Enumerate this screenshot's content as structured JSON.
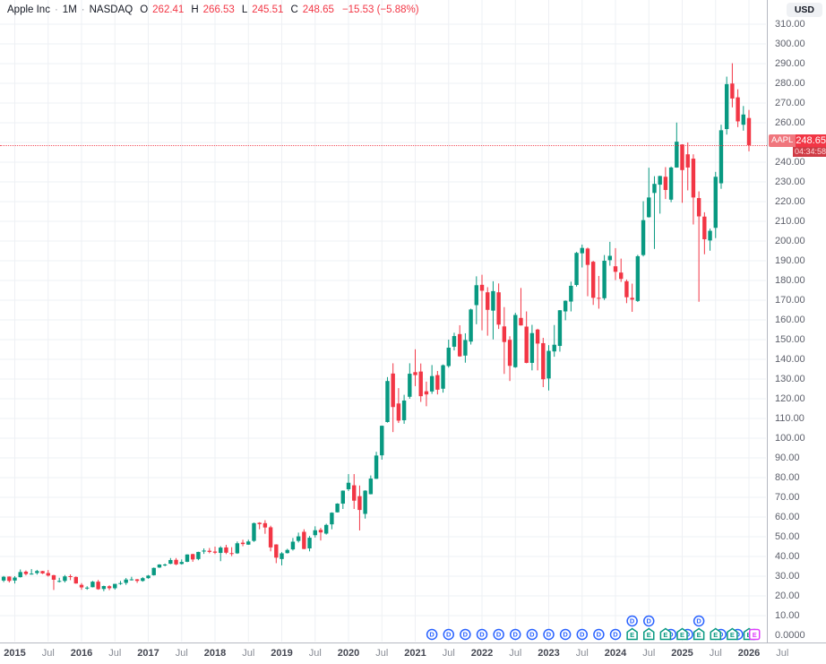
{
  "header": {
    "title": "Apple Inc",
    "dot": "·",
    "interval": "1M",
    "exchange": "NASDAQ",
    "o_label": "O",
    "o": "262.41",
    "h_label": "H",
    "h": "266.53",
    "l_label": "L",
    "l": "245.51",
    "c_label": "C",
    "c": "248.65",
    "change": "−15.53 (−5.88%)"
  },
  "price_axis": {
    "currency": "USD",
    "ticks": [
      "310.00",
      "300.00",
      "290.00",
      "280.00",
      "270.00",
      "260.00",
      "250.00",
      "240.00",
      "230.00",
      "220.00",
      "210.00",
      "200.00",
      "190.00",
      "180.00",
      "170.00",
      "160.00",
      "150.00",
      "140.00",
      "130.00",
      "120.00",
      "110.00",
      "100.00",
      "90.00",
      "80.00",
      "70.00",
      "60.00",
      "50.00",
      "40.00",
      "30.00",
      "20.00",
      "10.00",
      "0.0000"
    ],
    "last_price_label": {
      "symbol": "AAPL",
      "price": "248.65",
      "countdown": "04:34:58"
    }
  },
  "time_axis": {
    "ticks": [
      {
        "label": "2015",
        "month": "2015-01",
        "major": true
      },
      {
        "label": "Jul",
        "month": "2015-07",
        "major": false
      },
      {
        "label": "2016",
        "month": "2016-01",
        "major": true
      },
      {
        "label": "Jul",
        "month": "2016-07",
        "major": false
      },
      {
        "label": "2017",
        "month": "2017-01",
        "major": true
      },
      {
        "label": "Jul",
        "month": "2017-07",
        "major": false
      },
      {
        "label": "2018",
        "month": "2018-01",
        "major": true
      },
      {
        "label": "Jul",
        "month": "2018-07",
        "major": false
      },
      {
        "label": "2019",
        "month": "2019-01",
        "major": true
      },
      {
        "label": "Jul",
        "month": "2019-07",
        "major": false
      },
      {
        "label": "2020",
        "month": "2020-01",
        "major": true
      },
      {
        "label": "Jul",
        "month": "2020-07",
        "major": false
      },
      {
        "label": "2021",
        "month": "2021-01",
        "major": true
      },
      {
        "label": "Jul",
        "month": "2021-07",
        "major": false
      },
      {
        "label": "2022",
        "month": "2022-01",
        "major": true
      },
      {
        "label": "Jul",
        "month": "2022-07",
        "major": false
      },
      {
        "label": "2023",
        "month": "2023-01",
        "major": true
      },
      {
        "label": "Jul",
        "month": "2023-07",
        "major": false
      },
      {
        "label": "2024",
        "month": "2024-01",
        "major": true
      },
      {
        "label": "Jul",
        "month": "2024-07",
        "major": false
      },
      {
        "label": "2025",
        "month": "2025-01",
        "major": true
      },
      {
        "label": "Jul",
        "month": "2025-07",
        "major": false
      },
      {
        "label": "2026",
        "month": "2026-01",
        "major": true
      },
      {
        "label": "Jul",
        "month": "2026-07",
        "major": false
      }
    ]
  },
  "colors": {
    "up": "#089981",
    "down": "#f23645",
    "dividend": "#2962ff",
    "earnings": "#089981",
    "earnings_upcoming": "#e040fb",
    "grid": "#eef0f4",
    "last_price": "#f23645"
  },
  "markers": {
    "dividend_label": "D",
    "earnings_label": "E",
    "events": [
      {
        "month": "2021-04",
        "type": "dividend"
      },
      {
        "month": "2021-07",
        "type": "dividend"
      },
      {
        "month": "2021-10",
        "type": "dividend"
      },
      {
        "month": "2022-01",
        "type": "dividend"
      },
      {
        "month": "2022-04",
        "type": "dividend"
      },
      {
        "month": "2022-07",
        "type": "dividend"
      },
      {
        "month": "2022-10",
        "type": "dividend"
      },
      {
        "month": "2023-01",
        "type": "dividend"
      },
      {
        "month": "2023-04",
        "type": "dividend"
      },
      {
        "month": "2023-07",
        "type": "dividend"
      },
      {
        "month": "2023-10",
        "type": "dividend"
      },
      {
        "month": "2024-01",
        "type": "dividend"
      },
      {
        "month": "2024-04",
        "type": "earnings",
        "dividend_row2": true
      },
      {
        "month": "2024-07",
        "type": "earnings",
        "dividend_row2": true
      },
      {
        "month": "2024-10",
        "type": "earnings",
        "dividend_overlap": true
      },
      {
        "month": "2025-01",
        "type": "earnings",
        "dividend_overlap": true
      },
      {
        "month": "2025-04",
        "type": "earnings",
        "dividend_row2": true
      },
      {
        "month": "2025-07",
        "type": "earnings",
        "dividend_overlap": true
      },
      {
        "month": "2025-10",
        "type": "earnings",
        "dividend_overlap": true
      },
      {
        "month": "2026-01",
        "type": "earnings",
        "dividend_overlap": true
      },
      {
        "month": "2026-02",
        "type": "earnings_upcoming"
      }
    ]
  },
  "chart_data": {
    "type": "candlestick",
    "title": "Apple Inc (AAPL) · NASDAQ · 1M",
    "currency": "USD",
    "ylim": [
      0,
      310
    ],
    "grid": true,
    "last_close": 248.65,
    "months": [
      "2014-11",
      "2014-12",
      "2015-01",
      "2015-02",
      "2015-03",
      "2015-04",
      "2015-05",
      "2015-06",
      "2015-07",
      "2015-08",
      "2015-09",
      "2015-10",
      "2015-11",
      "2015-12",
      "2016-01",
      "2016-02",
      "2016-03",
      "2016-04",
      "2016-05",
      "2016-06",
      "2016-07",
      "2016-08",
      "2016-09",
      "2016-10",
      "2016-11",
      "2016-12",
      "2017-01",
      "2017-02",
      "2017-03",
      "2017-04",
      "2017-05",
      "2017-06",
      "2017-07",
      "2017-08",
      "2017-09",
      "2017-10",
      "2017-11",
      "2017-12",
      "2018-01",
      "2018-02",
      "2018-03",
      "2018-04",
      "2018-05",
      "2018-06",
      "2018-07",
      "2018-08",
      "2018-09",
      "2018-10",
      "2018-11",
      "2018-12",
      "2019-01",
      "2019-02",
      "2019-03",
      "2019-04",
      "2019-05",
      "2019-06",
      "2019-07",
      "2019-08",
      "2019-09",
      "2019-10",
      "2019-11",
      "2019-12",
      "2020-01",
      "2020-02",
      "2020-03",
      "2020-04",
      "2020-05",
      "2020-06",
      "2020-07",
      "2020-08",
      "2020-09",
      "2020-10",
      "2020-11",
      "2020-12",
      "2021-01",
      "2021-02",
      "2021-03",
      "2021-04",
      "2021-05",
      "2021-06",
      "2021-07",
      "2021-08",
      "2021-09",
      "2021-10",
      "2021-11",
      "2021-12",
      "2022-01",
      "2022-02",
      "2022-03",
      "2022-04",
      "2022-05",
      "2022-06",
      "2022-07",
      "2022-08",
      "2022-09",
      "2022-10",
      "2022-11",
      "2022-12",
      "2023-01",
      "2023-02",
      "2023-03",
      "2023-04",
      "2023-05",
      "2023-06",
      "2023-07",
      "2023-08",
      "2023-09",
      "2023-10",
      "2023-11",
      "2023-12",
      "2024-01",
      "2024-02",
      "2024-03",
      "2024-04",
      "2024-05",
      "2024-06",
      "2024-07",
      "2024-08",
      "2024-09",
      "2024-10",
      "2024-11",
      "2024-12",
      "2025-01",
      "2025-02",
      "2025-03",
      "2025-04",
      "2025-05",
      "2025-06",
      "2025-07",
      "2025-08",
      "2025-09",
      "2025-10",
      "2025-11",
      "2025-12",
      "2026-01"
    ],
    "ohlc": [
      [
        27.8,
        30.1,
        27.0,
        29.7
      ],
      [
        29.8,
        29.9,
        26.8,
        27.6
      ],
      [
        27.8,
        30.0,
        26.3,
        29.3
      ],
      [
        29.5,
        33.4,
        29.3,
        32.1
      ],
      [
        32.3,
        32.9,
        30.4,
        31.1
      ],
      [
        31.3,
        33.6,
        30.8,
        31.3
      ],
      [
        31.6,
        33.2,
        30.8,
        32.6
      ],
      [
        32.6,
        32.7,
        31.1,
        31.4
      ],
      [
        31.6,
        33.1,
        29.8,
        30.3
      ],
      [
        30.5,
        30.7,
        23.0,
        28.2
      ],
      [
        27.5,
        29.2,
        26.8,
        27.6
      ],
      [
        27.6,
        30.6,
        26.8,
        29.9
      ],
      [
        30.0,
        30.9,
        28.0,
        29.6
      ],
      [
        29.6,
        29.9,
        26.2,
        26.3
      ],
      [
        25.6,
        26.5,
        23.1,
        24.3
      ],
      [
        24.1,
        24.9,
        23.1,
        24.2
      ],
      [
        24.4,
        27.6,
        24.3,
        27.2
      ],
      [
        27.2,
        28.1,
        23.1,
        23.4
      ],
      [
        23.5,
        25.2,
        22.4,
        25.0
      ],
      [
        24.9,
        25.4,
        22.9,
        23.9
      ],
      [
        23.9,
        26.1,
        23.2,
        26.1
      ],
      [
        26.1,
        27.6,
        25.6,
        26.5
      ],
      [
        26.6,
        29.1,
        25.6,
        28.3
      ],
      [
        28.3,
        29.7,
        27.8,
        28.4
      ],
      [
        28.4,
        28.6,
        26.6,
        27.6
      ],
      [
        27.6,
        29.5,
        27.2,
        29.0
      ],
      [
        29.0,
        30.6,
        28.7,
        30.3
      ],
      [
        30.5,
        34.4,
        30.3,
        34.2
      ],
      [
        34.4,
        36.1,
        34.2,
        35.9
      ],
      [
        35.9,
        36.4,
        35.0,
        35.9
      ],
      [
        36.3,
        39.2,
        36.1,
        38.2
      ],
      [
        38.3,
        39.2,
        35.6,
        36.0
      ],
      [
        36.2,
        38.5,
        35.9,
        37.2
      ],
      [
        37.3,
        41.1,
        37.1,
        41.0
      ],
      [
        41.2,
        41.4,
        37.3,
        38.5
      ],
      [
        38.7,
        42.4,
        38.1,
        42.3
      ],
      [
        42.5,
        44.1,
        41.3,
        43.0
      ],
      [
        42.9,
        44.3,
        41.6,
        42.3
      ],
      [
        42.5,
        45.0,
        41.2,
        41.9
      ],
      [
        41.8,
        45.2,
        37.6,
        44.5
      ],
      [
        44.6,
        45.9,
        41.2,
        41.9
      ],
      [
        41.7,
        44.7,
        40.2,
        41.3
      ],
      [
        41.6,
        47.6,
        41.3,
        46.7
      ],
      [
        47.0,
        48.5,
        45.2,
        46.3
      ],
      [
        46.0,
        48.5,
        45.9,
        47.6
      ],
      [
        47.9,
        57.2,
        47.4,
        56.9
      ],
      [
        57.1,
        57.4,
        53.8,
        56.4
      ],
      [
        56.9,
        58.4,
        51.5,
        54.7
      ],
      [
        54.8,
        55.6,
        42.6,
        44.6
      ],
      [
        46.1,
        46.2,
        36.6,
        39.4
      ],
      [
        38.7,
        42.2,
        35.5,
        41.6
      ],
      [
        41.7,
        43.9,
        41.5,
        43.3
      ],
      [
        43.6,
        49.4,
        43.0,
        47.5
      ],
      [
        47.9,
        52.1,
        47.1,
        50.2
      ],
      [
        52.5,
        53.8,
        43.7,
        43.8
      ],
      [
        44.1,
        50.4,
        42.6,
        49.5
      ],
      [
        50.8,
        55.3,
        49.6,
        53.3
      ],
      [
        53.5,
        54.5,
        48.1,
        52.2
      ],
      [
        51.6,
        56.6,
        51.1,
        56.0
      ],
      [
        56.3,
        62.4,
        53.8,
        62.2
      ],
      [
        62.4,
        67.0,
        62.3,
        66.8
      ],
      [
        66.8,
        73.5,
        64.1,
        73.4
      ],
      [
        74.1,
        81.8,
        73.2,
        77.4
      ],
      [
        76.1,
        81.8,
        64.1,
        68.3
      ],
      [
        70.6,
        76.0,
        53.2,
        63.6
      ],
      [
        61.6,
        73.6,
        59.2,
        73.4
      ],
      [
        71.6,
        81.1,
        71.5,
        79.5
      ],
      [
        79.4,
        93.1,
        79.3,
        91.2
      ],
      [
        91.3,
        106.4,
        89.1,
        106.3
      ],
      [
        108.2,
        131.0,
        107.9,
        129.0
      ],
      [
        132.8,
        138.0,
        103.1,
        115.8
      ],
      [
        117.6,
        125.4,
        107.7,
        108.9
      ],
      [
        109.1,
        122.0,
        107.3,
        119.1
      ],
      [
        121.0,
        138.0,
        120.0,
        132.7
      ],
      [
        133.5,
        145.1,
        126.4,
        132.0
      ],
      [
        133.8,
        137.9,
        118.4,
        121.3
      ],
      [
        123.8,
        128.7,
        116.2,
        122.2
      ],
      [
        123.7,
        137.1,
        122.5,
        131.5
      ],
      [
        132.0,
        134.1,
        122.2,
        124.6
      ],
      [
        125.1,
        137.4,
        123.1,
        137.0
      ],
      [
        136.6,
        150.0,
        135.8,
        145.9
      ],
      [
        146.4,
        153.5,
        144.5,
        151.8
      ],
      [
        152.8,
        157.3,
        141.3,
        141.5
      ],
      [
        141.9,
        153.2,
        138.3,
        149.8
      ],
      [
        149.0,
        165.7,
        147.5,
        165.3
      ],
      [
        167.5,
        182.1,
        157.8,
        177.6
      ],
      [
        177.8,
        182.9,
        154.7,
        174.8
      ],
      [
        174.0,
        176.6,
        152.0,
        165.1
      ],
      [
        164.7,
        179.6,
        150.1,
        174.6
      ],
      [
        174.0,
        178.5,
        155.4,
        157.6
      ],
      [
        156.7,
        166.5,
        132.6,
        148.8
      ],
      [
        149.9,
        151.7,
        129.0,
        136.7
      ],
      [
        136.0,
        163.6,
        135.7,
        162.5
      ],
      [
        161.0,
        176.2,
        157.1,
        157.2
      ],
      [
        156.6,
        164.3,
        138.0,
        138.2
      ],
      [
        138.2,
        157.5,
        134.4,
        153.3
      ],
      [
        155.1,
        155.5,
        134.4,
        148.0
      ],
      [
        148.2,
        150.9,
        125.9,
        129.9
      ],
      [
        130.3,
        147.2,
        124.2,
        144.3
      ],
      [
        144.0,
        157.4,
        141.3,
        147.4
      ],
      [
        146.8,
        165.0,
        143.9,
        164.9
      ],
      [
        164.3,
        169.9,
        159.8,
        169.7
      ],
      [
        169.3,
        179.4,
        164.3,
        177.3
      ],
      [
        177.7,
        194.5,
        176.9,
        194.0
      ],
      [
        193.8,
        198.2,
        186.6,
        196.5
      ],
      [
        196.2,
        196.7,
        172.0,
        187.9
      ],
      [
        189.5,
        190.0,
        167.6,
        171.2
      ],
      [
        171.2,
        182.3,
        165.7,
        170.8
      ],
      [
        171.0,
        192.9,
        170.1,
        190.0
      ],
      [
        190.3,
        199.6,
        187.5,
        192.5
      ],
      [
        187.2,
        196.4,
        180.2,
        184.4
      ],
      [
        184.0,
        191.1,
        179.3,
        180.8
      ],
      [
        179.6,
        180.5,
        168.5,
        171.5
      ],
      [
        171.2,
        178.4,
        164.1,
        170.3
      ],
      [
        169.6,
        193.0,
        169.1,
        192.3
      ],
      [
        192.9,
        220.2,
        192.2,
        210.6
      ],
      [
        212.1,
        237.2,
        211.9,
        222.1
      ],
      [
        224.4,
        232.9,
        196.0,
        229.0
      ],
      [
        228.6,
        233.1,
        213.9,
        233.0
      ],
      [
        232.6,
        237.5,
        221.3,
        225.9
      ],
      [
        221.0,
        237.8,
        219.7,
        237.3
      ],
      [
        237.3,
        260.1,
        237.2,
        250.4
      ],
      [
        249.0,
        249.1,
        219.4,
        236.0
      ],
      [
        244.0,
        250.0,
        225.7,
        237.3
      ],
      [
        241.8,
        244.0,
        208.4,
        222.1
      ],
      [
        221.8,
        225.2,
        169.2,
        212.5
      ],
      [
        212.4,
        214.6,
        193.3,
        200.9
      ],
      [
        200.3,
        206.3,
        195.1,
        205.2
      ],
      [
        206.7,
        235.1,
        201.5,
        232.6
      ],
      [
        229.3,
        259.0,
        226.5,
        256.2
      ],
      [
        256.8,
        283.4,
        254.0,
        279.6
      ],
      [
        279.9,
        290.2,
        267.8,
        272.3
      ],
      [
        272.9,
        277.0,
        257.8,
        260.7
      ],
      [
        259.0,
        268.5,
        256.0,
        264.18
      ],
      [
        262.41,
        266.53,
        245.51,
        248.65
      ]
    ]
  }
}
